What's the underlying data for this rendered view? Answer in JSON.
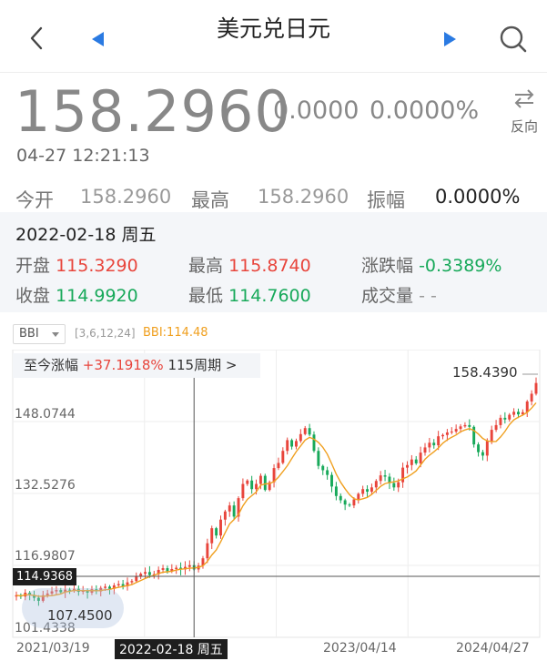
{
  "header": {
    "title": "美元兑日元",
    "back_icon": "chevron-left-icon",
    "prev_icon": "triangle-left-icon",
    "next_icon": "triangle-right-icon",
    "search_icon": "search-icon",
    "accent": "#2a7ae2"
  },
  "quote": {
    "price": "158.2960",
    "change": "0.0000",
    "change_pct": "0.0000%",
    "reverse_label": "反向",
    "time": "04-27 12:21:13",
    "open_label": "今开",
    "open": "158.2960",
    "high_label": "最高",
    "high": "158.2960",
    "amp_label": "振幅",
    "amp": "0.0000%"
  },
  "detail": {
    "date": "2022-02-18 周五",
    "open_label": "开盘",
    "open": "115.3290",
    "high_label": "最高",
    "high": "115.8740",
    "chgpct_label": "涨跌幅",
    "chgpct": "-0.3389%",
    "close_label": "收盘",
    "close": "114.9920",
    "low_label": "最低",
    "low": "114.7600",
    "volume_label": "成交量",
    "volume": "- -"
  },
  "indicator": {
    "name": "BBI",
    "params": "[3,6,12,24]",
    "value": "BBI:114.48"
  },
  "period": {
    "label": "至今涨幅",
    "pct": "+37.1918%",
    "weeks": "115周期 >"
  },
  "chart_data": {
    "type": "candlestick",
    "interval": "weekly",
    "y_ticks": [
      "148.0744",
      "132.5276",
      "116.9807",
      "101.4338"
    ],
    "ylim": [
      101.4338,
      158.44
    ],
    "x_ticks": [
      "2021/03/19",
      "2023/04/14",
      "2024/04/27"
    ],
    "period_high": "158.4390",
    "period_low": "107.4500",
    "crosshair": {
      "x_label": "2022-02-18 周五",
      "y_label": "114.9368"
    },
    "up_color": "#e8453c",
    "down_color": "#18a95a",
    "ma_color": "#f0a020",
    "closes": [
      108.9,
      108.6,
      109.5,
      109.0,
      108.3,
      107.6,
      108.9,
      109.3,
      109.8,
      110.1,
      109.6,
      110.2,
      110.0,
      110.4,
      109.7,
      110.0,
      109.5,
      110.3,
      109.8,
      110.6,
      110.9,
      110.4,
      111.2,
      111.5,
      111.0,
      111.9,
      112.2,
      113.4,
      113.9,
      114.3,
      113.6,
      113.8,
      114.8,
      115.2,
      114.5,
      115.0,
      115.3,
      114.9,
      115.5,
      115.9,
      114.9,
      115.8,
      117.5,
      121.0,
      124.5,
      122.8,
      126.5,
      128.4,
      129.8,
      127.2,
      131.5,
      134.8,
      135.6,
      133.6,
      134.8,
      136.7,
      133.4,
      135.2,
      138.5,
      139.7,
      142.5,
      145.0,
      143.5,
      144.8,
      146.4,
      147.8,
      146.3,
      142.5,
      139.0,
      138.0,
      136.9,
      134.2,
      132.0,
      131.0,
      130.0,
      129.8,
      131.2,
      132.5,
      133.6,
      133.0,
      134.0,
      135.5,
      136.8,
      136.5,
      135.0,
      134.0,
      135.2,
      138.6,
      139.2,
      140.5,
      139.6,
      142.1,
      143.3,
      144.4,
      143.8,
      145.9,
      146.2,
      146.8,
      147.0,
      147.6,
      148.2,
      148.5,
      148.1,
      144.0,
      142.2,
      141.4,
      144.8,
      147.4,
      148.5,
      150.2,
      149.8,
      150.9,
      151.6,
      151.0,
      151.5,
      154.0,
      155.8,
      158.3
    ]
  }
}
